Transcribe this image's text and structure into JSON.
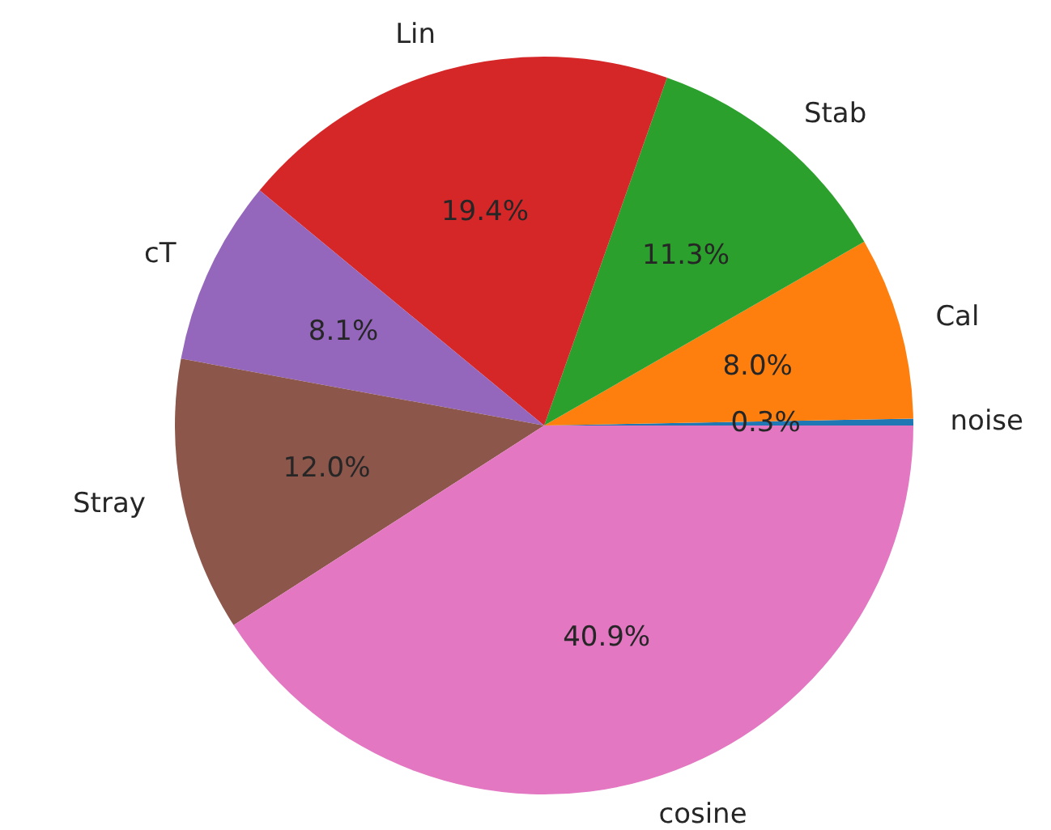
{
  "chart_data": {
    "type": "pie",
    "categories": [
      "noise",
      "Cal",
      "Stab",
      "Lin",
      "cT",
      "Stray",
      "cosine"
    ],
    "values": [
      0.3,
      8.0,
      11.3,
      19.4,
      8.1,
      12.0,
      40.9
    ],
    "colors": [
      "#1f77b4",
      "#ff7f0e",
      "#2ca02c",
      "#d62728",
      "#9467bd",
      "#8c564b",
      "#e377c2"
    ],
    "value_labels": [
      "0.3%",
      "8.0%",
      "11.3%",
      "19.4%",
      "8.1%",
      "12.0%",
      "40.9%"
    ],
    "legend": false
  }
}
